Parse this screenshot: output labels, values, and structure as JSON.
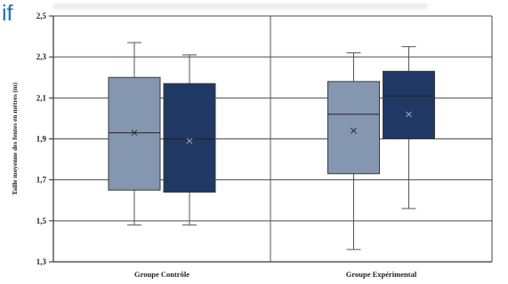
{
  "heading_fragment": "if",
  "chart_data": {
    "type": "boxplot",
    "ylabel": "Taille moyenne des fentes en mètres (m)",
    "xlabel": "",
    "ylim": [
      1.3,
      2.5
    ],
    "yticks": [
      "1,3",
      "1,5",
      "1,7",
      "1,9",
      "2,1",
      "2,3",
      "2,5"
    ],
    "ytick_values": [
      1.3,
      1.5,
      1.7,
      1.9,
      2.1,
      2.3,
      2.5
    ],
    "grid": true,
    "categories": [
      "Groupe Contrôle",
      "Groupe Expérimental"
    ],
    "colors": {
      "light": "#8496b0",
      "dark": "#1f3864"
    },
    "groups": [
      {
        "category": "Groupe Contrôle",
        "boxes": [
          {
            "shade": "light",
            "min": 1.48,
            "q1": 1.65,
            "median": 1.93,
            "q3": 2.2,
            "max": 2.37,
            "mean": 1.93
          },
          {
            "shade": "dark",
            "min": 1.48,
            "q1": 1.64,
            "median": 1.9,
            "q3": 2.17,
            "max": 2.31,
            "mean": 1.89
          }
        ]
      },
      {
        "category": "Groupe Expérimental",
        "boxes": [
          {
            "shade": "light",
            "min": 1.36,
            "q1": 1.73,
            "median": 2.02,
            "q3": 2.18,
            "max": 2.32,
            "mean": 1.94
          },
          {
            "shade": "dark",
            "min": 1.56,
            "q1": 1.9,
            "median": 2.11,
            "q3": 2.23,
            "max": 2.35,
            "mean": 2.02
          }
        ]
      }
    ]
  }
}
